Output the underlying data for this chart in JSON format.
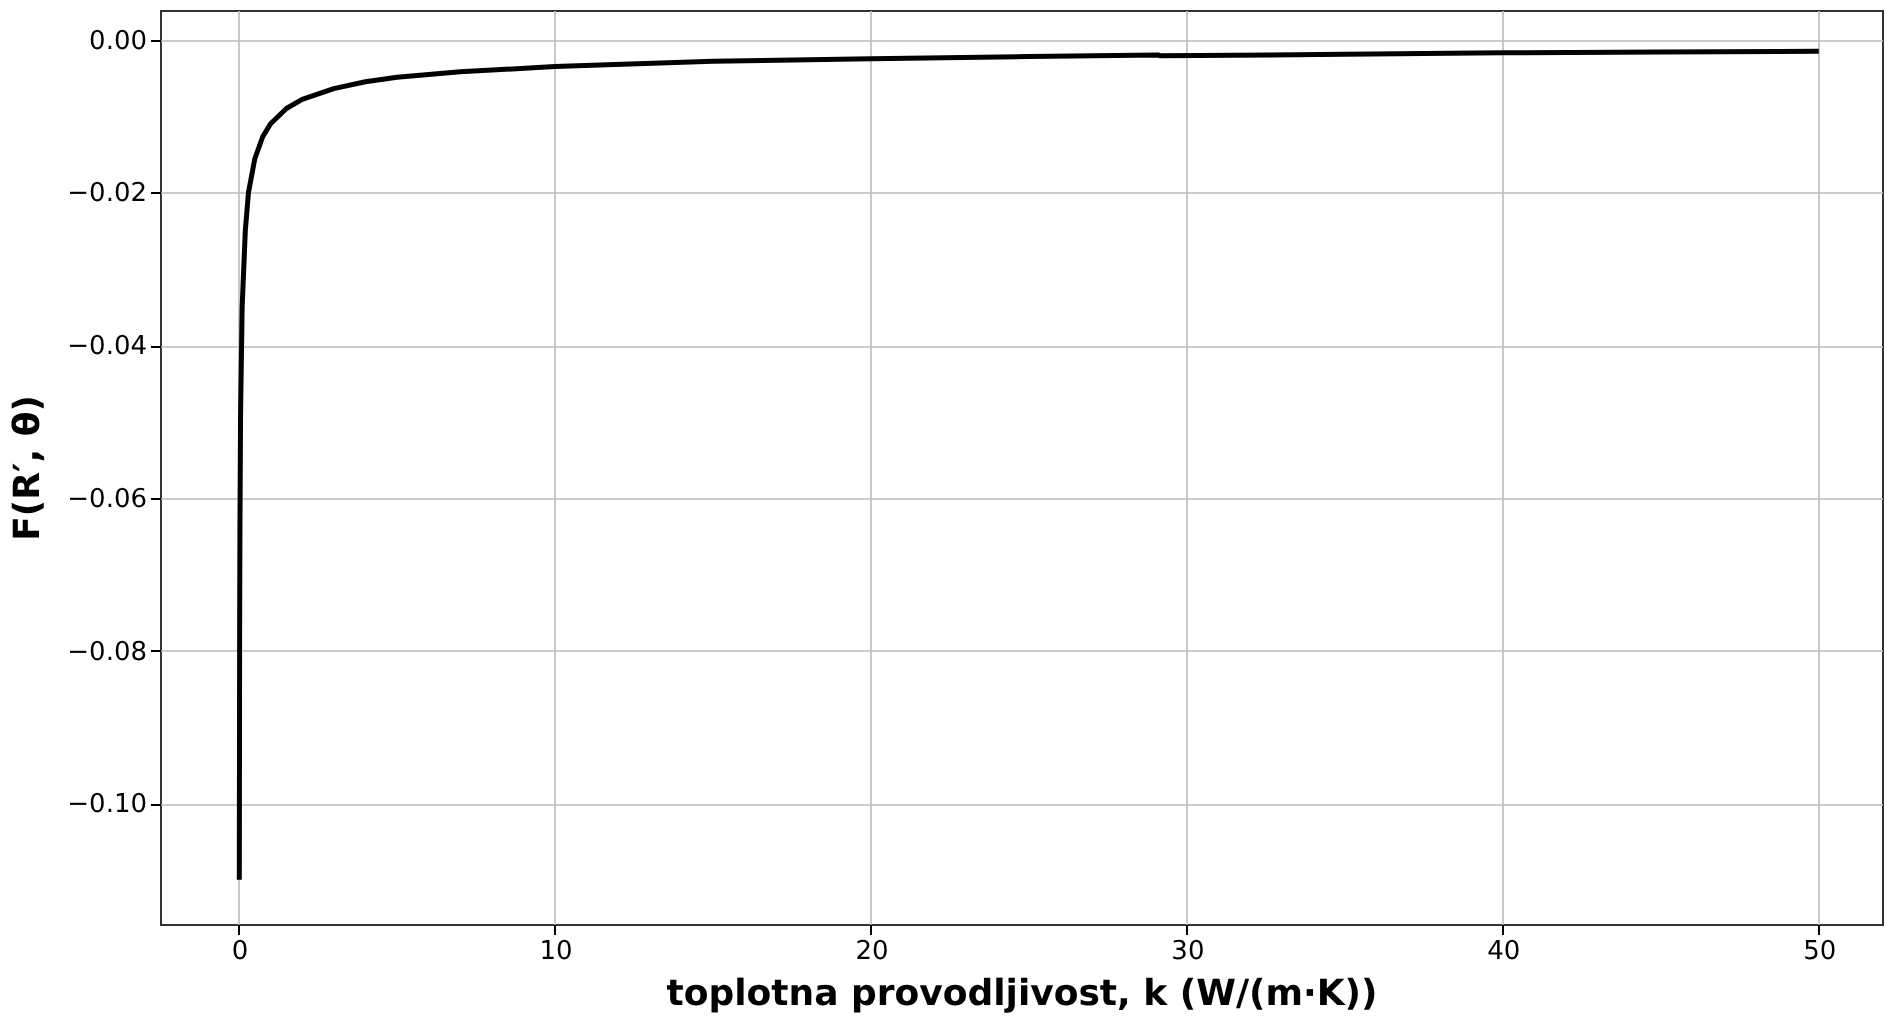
{
  "chart_data": {
    "type": "line",
    "xlabel": "toplotna provodljivost, k (W/(m·K))",
    "ylabel": "F(R′, θ)",
    "xlim": [
      -2.5,
      52
    ],
    "ylim": [
      -0.1158,
      0.0039
    ],
    "xticks": [
      0,
      10,
      20,
      30,
      40,
      50
    ],
    "yticks": [
      {
        "value": -0.1,
        "label": "−0.10"
      },
      {
        "value": -0.08,
        "label": "−0.08"
      },
      {
        "value": -0.06,
        "label": "−0.06"
      },
      {
        "value": -0.04,
        "label": "−0.04"
      },
      {
        "value": -0.02,
        "label": "−0.02"
      },
      {
        "value": 0.0,
        "label": "0.00"
      }
    ],
    "grid": true,
    "line_style": "solid",
    "marker": "none",
    "series": [
      {
        "color": "#000000",
        "x": [
          0.01,
          0.02,
          0.03,
          0.05,
          0.1,
          0.2,
          0.3,
          0.5,
          0.75,
          1,
          1.5,
          2,
          3,
          4,
          5,
          7,
          10,
          15,
          20,
          25,
          29.1,
          29.15,
          35,
          40,
          45,
          50
        ],
        "values": [
          -0.11,
          -0.078,
          -0.064,
          -0.049,
          -0.035,
          -0.025,
          -0.02,
          -0.0156,
          -0.0127,
          -0.011,
          -0.009,
          -0.0078,
          -0.0064,
          -0.0055,
          -0.0049,
          -0.0042,
          -0.0035,
          -0.0028,
          -0.0025,
          -0.0022,
          -0.002,
          -0.0021,
          -0.0019,
          -0.0017,
          -0.0016,
          -0.0015
        ]
      }
    ]
  }
}
